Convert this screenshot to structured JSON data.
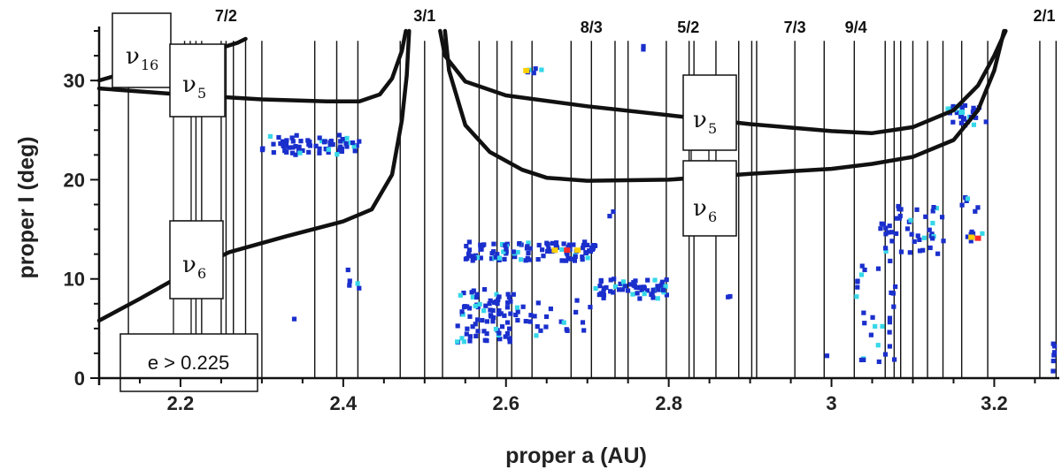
{
  "chart_data": {
    "type": "scatter",
    "title": "",
    "xlabel": "proper a (AU)",
    "ylabel": "proper I (deg)",
    "xlim": [
      2.1,
      3.28
    ],
    "ylim": [
      0,
      35
    ],
    "x_ticks": [
      {
        "value": 2.2,
        "label": "2.2"
      },
      {
        "value": 2.4,
        "label": "2.4"
      },
      {
        "value": 2.6,
        "label": "2.6"
      },
      {
        "value": 2.8,
        "label": "2.8"
      },
      {
        "value": 3.0,
        "label": "3"
      },
      {
        "value": 3.2,
        "label": "3.2"
      }
    ],
    "y_ticks": [
      {
        "value": 0,
        "label": "0"
      },
      {
        "value": 10,
        "label": "10"
      },
      {
        "value": 20,
        "label": "20"
      },
      {
        "value": 30,
        "label": "30"
      }
    ],
    "resonance_labels": [
      {
        "text": "7/2",
        "a": 2.256
      },
      {
        "text": "3/1",
        "a": 2.5
      },
      {
        "text": "8/3",
        "a": 2.705
      },
      {
        "text": "5/2",
        "a": 2.824
      },
      {
        "text": "7/3",
        "a": 2.955
      },
      {
        "text": "9/4",
        "a": 3.03
      },
      {
        "text": "2/1",
        "a": 3.276
      }
    ],
    "resonance_lines_a": [
      2.136,
      2.205,
      2.212,
      2.219,
      2.226,
      2.25,
      2.256,
      2.265,
      2.28,
      2.3,
      2.365,
      2.392,
      2.418,
      2.47,
      2.5,
      2.522,
      2.567,
      2.589,
      2.607,
      2.632,
      2.68,
      2.705,
      2.734,
      2.75,
      2.797,
      2.825,
      2.831,
      2.858,
      2.886,
      2.902,
      2.908,
      2.955,
      2.991,
      3.028,
      3.066,
      3.077,
      3.085,
      3.1,
      3.118,
      3.137,
      3.16,
      3.192,
      3.256,
      3.276
    ],
    "secular_curves": [
      {
        "label": "nu16",
        "points": [
          [
            2.1,
            30.0
          ],
          [
            2.15,
            31.2
          ],
          [
            2.2,
            32.3
          ],
          [
            2.25,
            33.3
          ],
          [
            2.27,
            33.8
          ],
          [
            2.28,
            34.2
          ]
        ]
      },
      {
        "label": "nu5",
        "points": [
          [
            2.1,
            29.2
          ],
          [
            2.2,
            28.6
          ],
          [
            2.3,
            28.1
          ],
          [
            2.38,
            27.9
          ],
          [
            2.42,
            27.9
          ],
          [
            2.445,
            28.6
          ],
          [
            2.46,
            30.2
          ],
          [
            2.472,
            33.0
          ],
          [
            2.477,
            35.0
          ]
        ]
      },
      {
        "label": "nu6",
        "points": [
          [
            2.1,
            5.8
          ],
          [
            2.15,
            8.0
          ],
          [
            2.2,
            10.3
          ],
          [
            2.26,
            12.7
          ],
          [
            2.33,
            14.3
          ],
          [
            2.4,
            15.8
          ],
          [
            2.435,
            17.0
          ],
          [
            2.46,
            20.5
          ],
          [
            2.472,
            26.0
          ],
          [
            2.478,
            30.5
          ],
          [
            2.481,
            35.0
          ]
        ]
      },
      {
        "label": "nu5",
        "points": [
          [
            2.519,
            35.0
          ],
          [
            2.525,
            32.5
          ],
          [
            2.55,
            29.9
          ],
          [
            2.6,
            28.5
          ],
          [
            2.7,
            27.4
          ],
          [
            2.8,
            26.5
          ],
          [
            2.9,
            25.6
          ],
          [
            3.0,
            24.9
          ],
          [
            3.05,
            24.7
          ],
          [
            3.1,
            25.3
          ],
          [
            3.15,
            27.0
          ],
          [
            3.18,
            29.5
          ],
          [
            3.2,
            32.5
          ],
          [
            3.214,
            35.0
          ]
        ]
      },
      {
        "label": "nu6",
        "points": [
          [
            2.525,
            35.0
          ],
          [
            2.53,
            31.0
          ],
          [
            2.55,
            25.5
          ],
          [
            2.58,
            22.8
          ],
          [
            2.62,
            21.0
          ],
          [
            2.65,
            20.2
          ],
          [
            2.7,
            19.9
          ],
          [
            2.8,
            20.0
          ],
          [
            2.9,
            20.6
          ],
          [
            3.0,
            21.1
          ],
          [
            3.05,
            21.6
          ],
          [
            3.1,
            22.3
          ],
          [
            3.15,
            24.0
          ],
          [
            3.18,
            27.0
          ],
          [
            3.2,
            31.0
          ],
          [
            3.212,
            35.0
          ]
        ]
      }
    ],
    "boxes": [
      {
        "label": "ν",
        "sub": "16",
        "kind": "nu16"
      },
      {
        "label": "ν",
        "sub": "5",
        "kind": "nu5-left"
      },
      {
        "label": "ν",
        "sub": "6",
        "kind": "nu6-left"
      },
      {
        "label": "ν",
        "sub": "5",
        "kind": "nu5-right"
      },
      {
        "label": "ν",
        "sub": "6",
        "kind": "nu6-right"
      }
    ],
    "eccentricity_label": "e > 0.225",
    "density_clusters": [
      {
        "a0": 2.3,
        "a1": 2.42,
        "i0": 22.5,
        "i1": 24.5,
        "n": 70
      },
      {
        "a0": 2.4,
        "a1": 2.42,
        "i0": 9.0,
        "i1": 11.0,
        "n": 5
      },
      {
        "a0": 2.32,
        "a1": 2.34,
        "i0": 5.8,
        "i1": 6.0,
        "n": 1
      },
      {
        "a0": 2.55,
        "a1": 2.71,
        "i0": 11.8,
        "i1": 13.8,
        "n": 110
      },
      {
        "a0": 2.54,
        "a1": 2.61,
        "i0": 3.6,
        "i1": 9.0,
        "n": 80
      },
      {
        "a0": 2.61,
        "a1": 2.71,
        "i0": 4.0,
        "i1": 8.0,
        "n": 25
      },
      {
        "a0": 2.71,
        "a1": 2.8,
        "i0": 8.0,
        "i1": 10.0,
        "n": 60
      },
      {
        "a0": 2.72,
        "a1": 2.74,
        "i0": 16.3,
        "i1": 16.8,
        "n": 2
      },
      {
        "a0": 2.62,
        "a1": 2.65,
        "i0": 30.6,
        "i1": 31.3,
        "n": 5
      },
      {
        "a0": 2.75,
        "a1": 2.77,
        "i0": 33.0,
        "i1": 33.5,
        "n": 2
      },
      {
        "a0": 2.87,
        "a1": 2.88,
        "i0": 7.8,
        "i1": 8.3,
        "n": 2
      },
      {
        "a0": 3.06,
        "a1": 3.14,
        "i0": 12.5,
        "i1": 17.5,
        "n": 45
      },
      {
        "a0": 3.03,
        "a1": 3.08,
        "i0": 1.5,
        "i1": 12.0,
        "n": 30
      },
      {
        "a0": 3.14,
        "a1": 3.19,
        "i0": 25.5,
        "i1": 27.5,
        "n": 30
      },
      {
        "a0": 3.16,
        "a1": 3.18,
        "i0": 15.5,
        "i1": 18.5,
        "n": 6
      },
      {
        "a0": 3.165,
        "a1": 3.19,
        "i0": 13.8,
        "i1": 14.8,
        "n": 6
      },
      {
        "a0": 3.27,
        "a1": 3.275,
        "i0": 0.5,
        "i1": 3.5,
        "n": 6
      },
      {
        "a0": 2.99,
        "a1": 3.0,
        "i0": 2.0,
        "i1": 2.4,
        "n": 1
      }
    ],
    "hot_spots": [
      {
        "a": 2.66,
        "i": 12.9,
        "color": "#ffd000"
      },
      {
        "a": 2.675,
        "i": 12.9,
        "color": "#ff2a2a"
      },
      {
        "a": 2.688,
        "i": 12.9,
        "color": "#ffd000"
      },
      {
        "a": 2.625,
        "i": 31.0,
        "color": "#ffd000"
      },
      {
        "a": 3.172,
        "i": 14.2,
        "color": "#ffd000"
      },
      {
        "a": 3.18,
        "i": 14.1,
        "color": "#ff2a2a"
      },
      {
        "a": 3.16,
        "i": 26.8,
        "color": "#36d7e8"
      }
    ],
    "colors": {
      "low": "#1a2fcc",
      "mid": "#36d7e8",
      "high": "#ffd000",
      "peak": "#ff2a2a",
      "curve": "#111111",
      "resonance_line": "#111111"
    }
  }
}
